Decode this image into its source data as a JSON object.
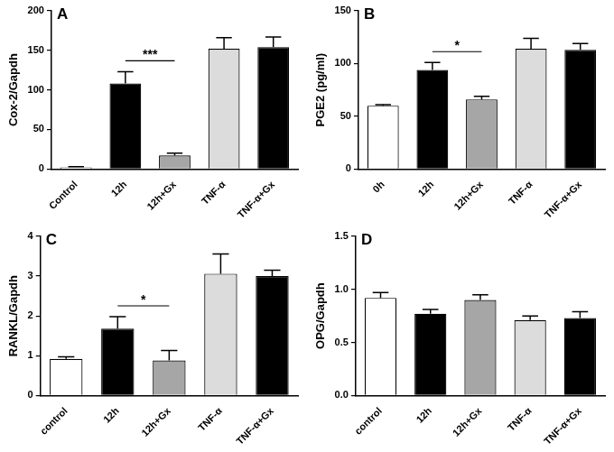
{
  "chart_data": [
    {
      "type": "bar",
      "title": "A",
      "y_label": "Cox-2/Gapdh",
      "categories": [
        "Control",
        "12h",
        "12h+Gx",
        "TNF-α",
        "TNF-α+Gx"
      ],
      "values": [
        2,
        108,
        17,
        152,
        154
      ],
      "errors": [
        1,
        15,
        3,
        14,
        13
      ],
      "colors": [
        "#ffffff",
        "#000000",
        "#a6a6a6",
        "#dcdcdc",
        "#000000"
      ],
      "ylim": [
        0,
        200
      ],
      "yticks": [
        0,
        50,
        100,
        150,
        200
      ],
      "grid": false,
      "annotations": [
        {
          "text": "***",
          "categories": [
            "12h",
            "12h+Gx"
          ]
        }
      ]
    },
    {
      "type": "bar",
      "title": "B",
      "y_label": "PGE2 (pg/ml)",
      "categories": [
        "0h",
        "12h",
        "12h+Gx",
        "TNF-α",
        "TNF-α+Gx"
      ],
      "values": [
        60,
        94,
        66,
        114,
        113
      ],
      "errors": [
        1,
        7,
        3,
        10,
        6
      ],
      "colors": [
        "#ffffff",
        "#000000",
        "#a6a6a6",
        "#dcdcdc",
        "#000000"
      ],
      "ylim": [
        0,
        150
      ],
      "yticks": [
        0,
        50,
        100,
        150
      ],
      "grid": false,
      "annotations": [
        {
          "text": "*",
          "categories": [
            "12h",
            "12h+Gx"
          ]
        }
      ]
    },
    {
      "type": "bar",
      "title": "C",
      "y_label": "RANKL/Gapdh",
      "categories": [
        "control",
        "12h",
        "12h+Gx",
        "TNF-α",
        "TNF-α+Gx"
      ],
      "values": [
        0.92,
        1.68,
        0.88,
        3.06,
        3.0
      ],
      "errors": [
        0.05,
        0.3,
        0.25,
        0.5,
        0.15
      ],
      "colors": [
        "#ffffff",
        "#000000",
        "#a6a6a6",
        "#dcdcdc",
        "#000000"
      ],
      "ylim": [
        0,
        4
      ],
      "yticks": [
        0,
        1,
        2,
        3,
        4
      ],
      "grid": false,
      "annotations": [
        {
          "text": "*",
          "categories": [
            "12h",
            "12h+Gx"
          ]
        }
      ]
    },
    {
      "type": "bar",
      "title": "D",
      "y_label": "OPG/Gapdh",
      "categories": [
        "control",
        "12h",
        "12h+Gx",
        "TNF-α",
        "TNF-α+Gx"
      ],
      "values": [
        0.92,
        0.77,
        0.9,
        0.71,
        0.73
      ],
      "errors": [
        0.05,
        0.04,
        0.05,
        0.04,
        0.06
      ],
      "colors": [
        "#ffffff",
        "#000000",
        "#a6a6a6",
        "#dcdcdc",
        "#000000"
      ],
      "ylim": [
        0,
        1.5
      ],
      "yticks": [
        {
          "value": 0,
          "label": "0.0"
        },
        {
          "value": 0.5,
          "label": "0.5"
        },
        {
          "value": 1,
          "label": "1.0"
        },
        {
          "value": 1.5,
          "label": "1.5"
        }
      ],
      "grid": false,
      "annotations": []
    }
  ]
}
